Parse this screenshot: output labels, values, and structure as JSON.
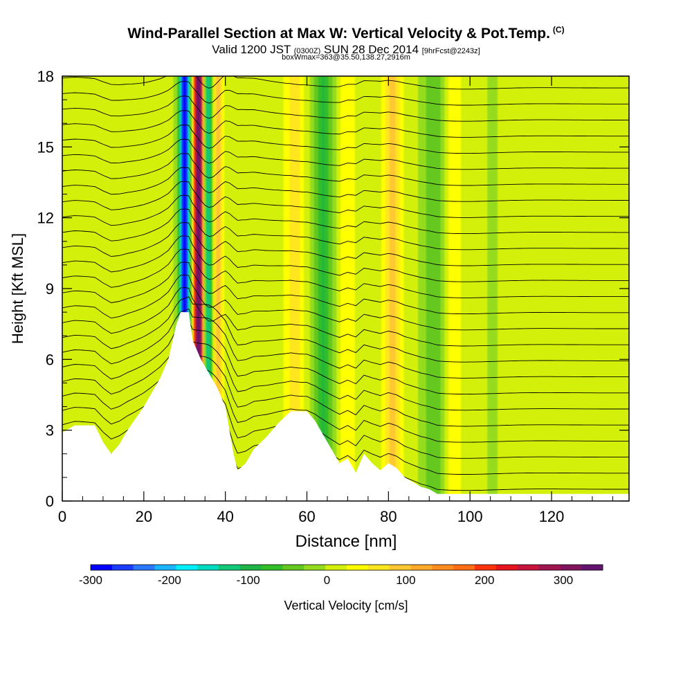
{
  "header": {
    "title": "Wind-Parallel Section at Max W: Vertical Velocity & Pot.Temp.",
    "copyright": "(C)",
    "valid_prefix": "Valid 1200 JST",
    "valid_zulu": "(0300Z)",
    "valid_date": "SUN 28 Dec 2014",
    "forecast": "[9hrFcst@2243z]",
    "box_info": "boxWmax=363@35.50,138.27,2916m"
  },
  "chart_data": {
    "type": "heatmap",
    "xlabel": "Distance [nm]",
    "ylabel": "Height [Kft MSL]",
    "xlim": [
      0,
      139
    ],
    "ylim": [
      0,
      18
    ],
    "x_ticks": [
      0,
      20,
      40,
      60,
      80,
      100,
      120
    ],
    "y_ticks": [
      0,
      3,
      6,
      9,
      12,
      15,
      18
    ],
    "colorbar": {
      "label": "Vertical Velocity [cm/s]",
      "range": [
        -300,
        350
      ],
      "ticks": [
        -300,
        -200,
        -100,
        0,
        100,
        200,
        300
      ],
      "colors": [
        "#0000ff",
        "#1a3cff",
        "#2a78ff",
        "#1ab4ff",
        "#00f0ff",
        "#00dcc0",
        "#10c878",
        "#1eb446",
        "#32be28",
        "#64c81e",
        "#96dc1e",
        "#d2f00a",
        "#ffff00",
        "#ffe61e",
        "#ffc832",
        "#ffaa28",
        "#ff8c1e",
        "#ff6e14",
        "#ff320a",
        "#e6141e",
        "#c8143c",
        "#a01450",
        "#82145f",
        "#64146e"
      ]
    },
    "terrain_kft": [
      [
        0,
        2.9
      ],
      [
        3,
        3.2
      ],
      [
        8,
        3.2
      ],
      [
        10,
        2.5
      ],
      [
        12,
        2.0
      ],
      [
        14,
        2.4
      ],
      [
        16,
        3.0
      ],
      [
        18,
        3.5
      ],
      [
        20,
        4.0
      ],
      [
        22,
        4.6
      ],
      [
        24,
        5.2
      ],
      [
        26,
        6.0
      ],
      [
        28,
        7.5
      ],
      [
        29,
        8.0
      ],
      [
        31,
        8.0
      ],
      [
        32,
        6.8
      ],
      [
        34,
        6.0
      ],
      [
        36,
        5.4
      ],
      [
        38,
        4.8
      ],
      [
        40,
        4.0
      ],
      [
        42,
        2.0
      ],
      [
        43,
        1.3
      ],
      [
        45,
        1.6
      ],
      [
        47,
        2.2
      ],
      [
        50,
        2.7
      ],
      [
        53,
        3.3
      ],
      [
        56,
        3.8
      ],
      [
        60,
        3.8
      ],
      [
        62,
        3.4
      ],
      [
        64,
        2.8
      ],
      [
        66,
        2.2
      ],
      [
        68,
        1.6
      ],
      [
        70,
        1.8
      ],
      [
        72,
        1.2
      ],
      [
        74,
        2.0
      ],
      [
        76,
        1.6
      ],
      [
        78,
        1.3
      ],
      [
        80,
        1.6
      ],
      [
        82,
        1.4
      ],
      [
        84,
        1.0
      ],
      [
        86,
        0.8
      ],
      [
        88,
        0.6
      ],
      [
        90,
        0.5
      ],
      [
        92,
        0.3
      ],
      [
        139,
        0.3
      ]
    ],
    "updrafts": [
      {
        "x": 33.5,
        "peak_cms": 363
      },
      {
        "x": 37.5,
        "peak_cms": 150
      },
      {
        "x": 57,
        "peak_cms": 60
      },
      {
        "x": 70,
        "peak_cms": 40
      },
      {
        "x": 81,
        "peak_cms": 80
      },
      {
        "x": 96,
        "peak_cms": 30
      },
      {
        "x": 103,
        "peak_cms": 40
      }
    ],
    "downdrafts": [
      {
        "x": 30,
        "min_cms": -300
      },
      {
        "x": 36,
        "min_cms": -200
      },
      {
        "x": 64,
        "min_cms": -90
      },
      {
        "x": 91,
        "min_cms": -60
      },
      {
        "x": 104,
        "min_cms": -40
      }
    ],
    "isentropes": {
      "count": 26,
      "spacing_kft": 0.68,
      "base_kft": 0.5
    }
  }
}
